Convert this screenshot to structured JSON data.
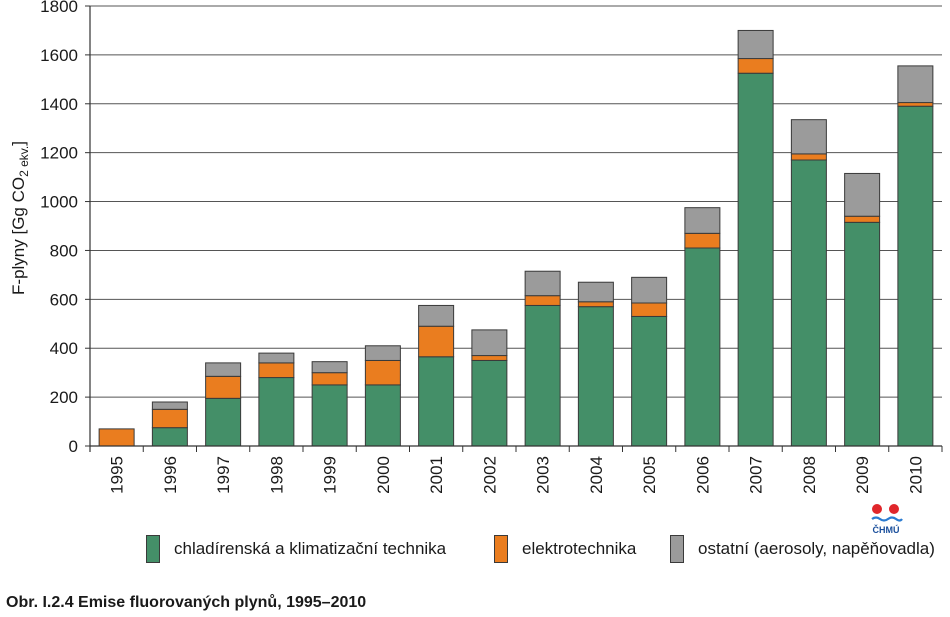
{
  "chart_data": {
    "type": "bar",
    "stacked": true,
    "categories": [
      "1995",
      "1996",
      "1997",
      "1998",
      "1999",
      "2000",
      "2001",
      "2002",
      "2003",
      "2004",
      "2005",
      "2006",
      "2007",
      "2008",
      "2009",
      "2010"
    ],
    "series": [
      {
        "name": "chladírenská a klimatizační technika",
        "color": "#448f68",
        "values": [
          0,
          75,
          195,
          280,
          250,
          250,
          365,
          350,
          575,
          570,
          530,
          810,
          1525,
          1170,
          915,
          1390
        ]
      },
      {
        "name": "elektrotechnika",
        "color": "#ea7d1f",
        "values": [
          70,
          75,
          90,
          60,
          50,
          100,
          125,
          20,
          40,
          20,
          55,
          60,
          60,
          25,
          25,
          15
        ]
      },
      {
        "name": "ostatní (aerosoly, napěňovadla)",
        "color": "#9b9b9b",
        "values": [
          0,
          30,
          55,
          40,
          45,
          60,
          85,
          105,
          100,
          80,
          105,
          105,
          115,
          140,
          175,
          150
        ]
      }
    ],
    "ylabel": "F-plyny [Gg CO2 ekv.]",
    "ylabel_parts": {
      "main": "F-plyny [Gg CO",
      "sub": "2 ekv.",
      "end": "]"
    },
    "ylim": [
      0,
      1800
    ],
    "yticks": [
      0,
      200,
      400,
      600,
      800,
      1000,
      1200,
      1400,
      1600,
      1800
    ],
    "grid": true,
    "legend_position": "bottom"
  },
  "caption": "Obr. I.2.4  Emise fluorovaných plynů, 1995–2010",
  "logo_text": "ČHMÚ"
}
